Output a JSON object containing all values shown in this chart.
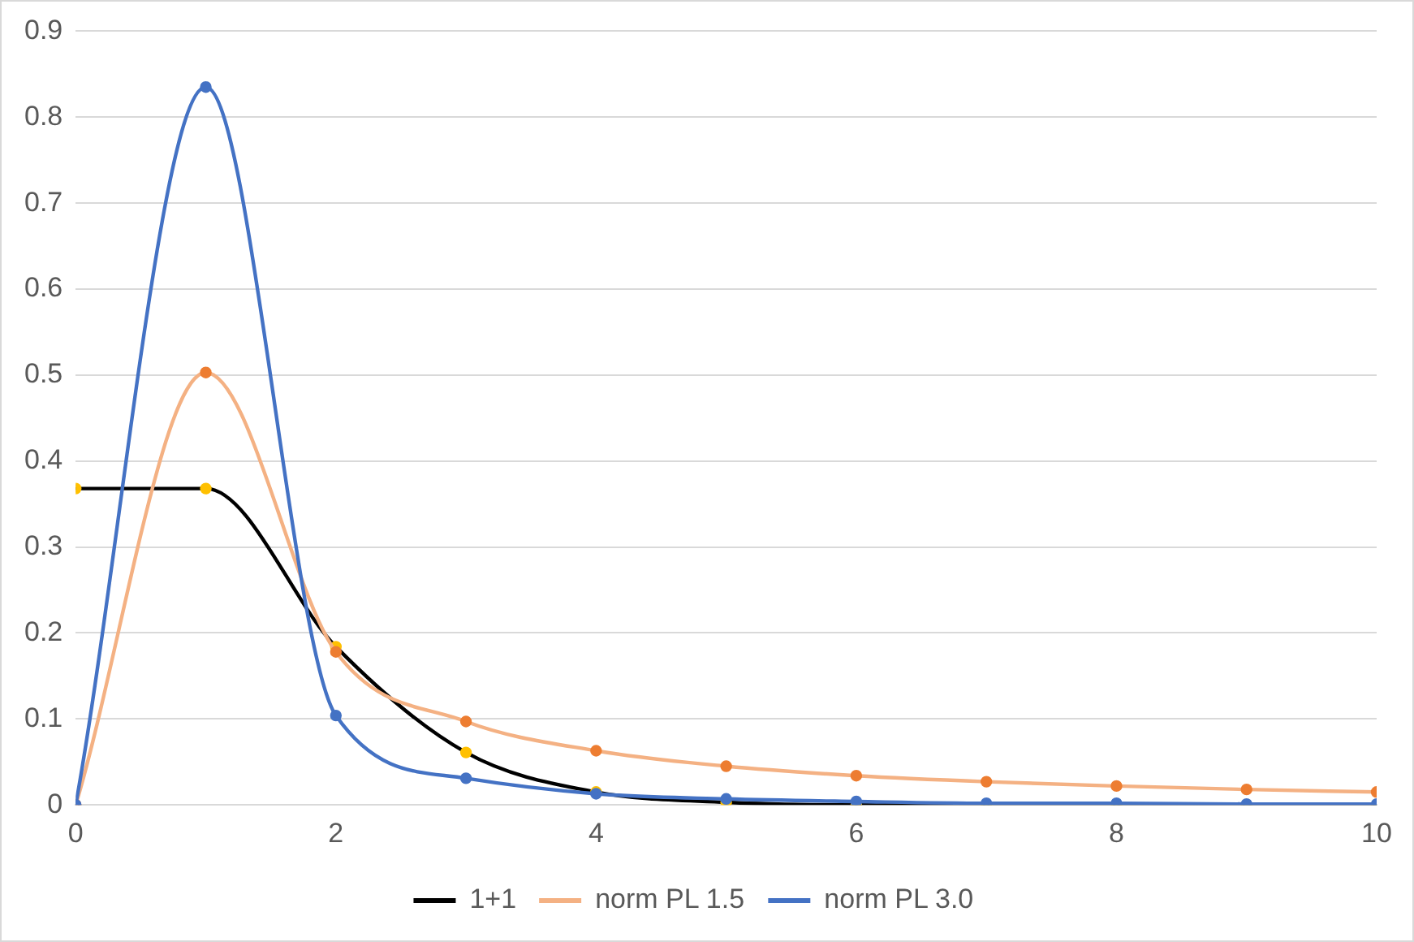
{
  "chart_data": {
    "type": "line",
    "x": [
      0,
      1,
      2,
      3,
      4,
      5,
      6,
      7,
      8,
      9,
      10
    ],
    "series": [
      {
        "name": "1+1",
        "color": "#000000",
        "colors": [
          "#ffc000",
          "#ffc000",
          "#ffc000",
          "#ffc000",
          "#ffc000",
          "#ffc000",
          "#ffc000",
          "#ffc000",
          "#ffc000",
          "#ffc000",
          "#ffc000"
        ],
        "values": [
          0.368,
          0.368,
          0.184,
          0.061,
          0.015,
          0.003,
          0,
          0,
          0,
          0,
          0
        ]
      },
      {
        "name": "norm PL 1.5",
        "color": "#f4b183",
        "colors": [
          "#ed7d31",
          "#ed7d31",
          "#ed7d31",
          "#ed7d31",
          "#ed7d31",
          "#ed7d31",
          "#ed7d31",
          "#ed7d31",
          "#ed7d31",
          "#ed7d31",
          "#ed7d31"
        ],
        "values": [
          0,
          0.503,
          0.178,
          0.097,
          0.063,
          0.045,
          0.034,
          0.027,
          0.022,
          0.018,
          0.015
        ]
      },
      {
        "name": "norm PL 3.0",
        "color": "#4472c4",
        "colors": [
          "#4472c4",
          "#4472c4",
          "#4472c4",
          "#4472c4",
          "#4472c4",
          "#4472c4",
          "#4472c4",
          "#4472c4",
          "#4472c4",
          "#4472c4",
          "#4472c4"
        ],
        "values": [
          0,
          0.835,
          0.104,
          0.031,
          0.013,
          0.007,
          0.004,
          0.002,
          0.002,
          0.001,
          0.001
        ]
      }
    ],
    "xlim": [
      0,
      10
    ],
    "xticks": [
      0,
      2,
      4,
      6,
      8,
      10
    ],
    "ylim": [
      0,
      0.9
    ],
    "yticks": [
      0,
      0.1,
      0.2,
      0.3,
      0.4,
      0.5,
      0.6,
      0.7,
      0.8,
      0.9
    ],
    "grid": "y",
    "legend": "bottom",
    "marker": "circle",
    "line_style": "solid"
  }
}
